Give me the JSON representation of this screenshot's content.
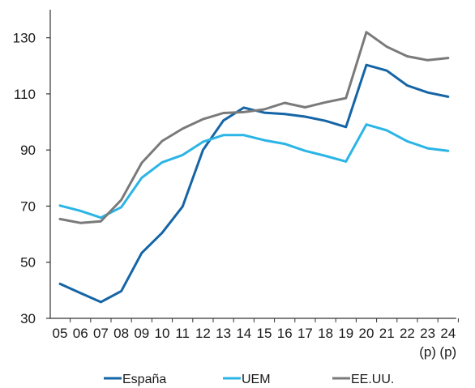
{
  "chart_data": {
    "type": "line",
    "categories": [
      "05",
      "06",
      "07",
      "08",
      "09",
      "10",
      "11",
      "12",
      "13",
      "14",
      "15",
      "16",
      "17",
      "18",
      "19",
      "20",
      "21",
      "22",
      "23",
      "24"
    ],
    "category_notes": {
      "23": "(p)",
      "24": "(p)"
    },
    "ylim": [
      30,
      140
    ],
    "yticks": [
      30,
      50,
      70,
      90,
      110,
      130
    ],
    "grid": false,
    "legend_position": "bottom",
    "series": [
      {
        "name": "España",
        "color": "#1565a6",
        "values": [
          42.3,
          39.0,
          35.8,
          39.7,
          53.3,
          60.5,
          69.8,
          90.0,
          100.5,
          105.1,
          103.3,
          102.8,
          101.9,
          100.4,
          98.2,
          120.3,
          118.3,
          113.0,
          110.5,
          109.0
        ]
      },
      {
        "name": "UEM",
        "color": "#2bb5e6",
        "values": [
          70.2,
          68.3,
          65.9,
          69.6,
          80.1,
          85.6,
          88.2,
          92.9,
          95.3,
          95.3,
          93.5,
          92.2,
          89.7,
          87.9,
          85.9,
          99.1,
          97.0,
          93.1,
          90.6,
          89.7
        ]
      },
      {
        "name": "EE.UU.",
        "color": "#7a7a7a",
        "values": [
          65.4,
          64.0,
          64.6,
          72.2,
          85.4,
          93.2,
          97.6,
          101.0,
          103.2,
          103.5,
          104.5,
          106.8,
          105.2,
          107.0,
          108.5,
          132.0,
          126.8,
          123.4,
          122.0,
          122.8
        ]
      }
    ]
  }
}
